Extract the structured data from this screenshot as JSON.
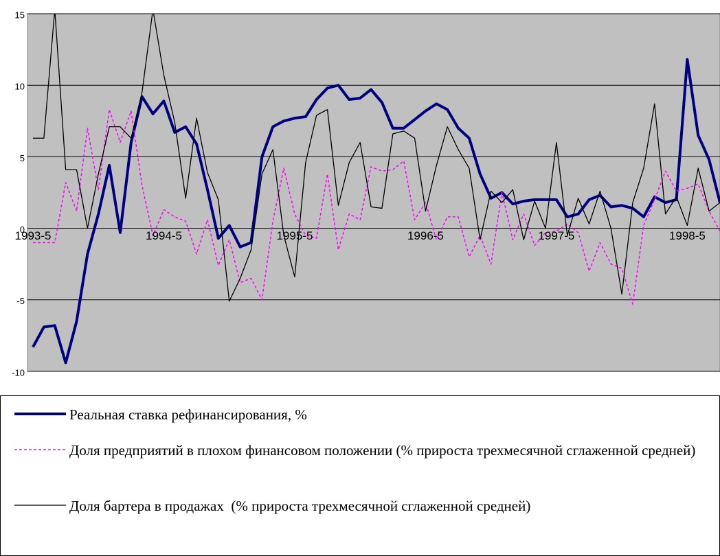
{
  "chart_data": {
    "type": "line",
    "categories": [
      "1993-5",
      null,
      null,
      null,
      null,
      null,
      null,
      null,
      null,
      null,
      null,
      null,
      "1994-5",
      null,
      null,
      null,
      null,
      null,
      null,
      null,
      null,
      null,
      null,
      null,
      "1995-5",
      null,
      null,
      null,
      null,
      null,
      null,
      null,
      null,
      null,
      null,
      null,
      "1996-5",
      null,
      null,
      null,
      null,
      null,
      null,
      null,
      null,
      null,
      null,
      null,
      "1997-5",
      null,
      null,
      null,
      null,
      null,
      null,
      null,
      null,
      null,
      null,
      null,
      "1998-5",
      null,
      null,
      null
    ],
    "ylim": [
      -10,
      15
    ],
    "yticks": [
      -10,
      -5,
      0,
      5,
      10,
      15
    ],
    "grid": true,
    "series": [
      {
        "name": "Реальная ставка рефинансирования, %",
        "color": "#000080",
        "style": "solid",
        "width": 4,
        "values": [
          -8.3,
          -6.9,
          -6.8,
          -9.4,
          -6.5,
          -1.8,
          1.0,
          4.4,
          -0.3,
          6.0,
          9.2,
          8.0,
          8.9,
          6.7,
          7.1,
          5.9,
          2.7,
          -0.7,
          0.2,
          -1.3,
          -1.0,
          5.0,
          7.1,
          7.5,
          7.7,
          7.8,
          9.0,
          9.8,
          10.0,
          9.0,
          9.1,
          9.7,
          8.8,
          7.0,
          7.0,
          7.6,
          8.2,
          8.7,
          8.3,
          7.0,
          6.3,
          3.8,
          2.1,
          2.5,
          1.7,
          1.9,
          2.0,
          2.0,
          2.0,
          0.8,
          1.0,
          2.0,
          2.3,
          1.5,
          1.6,
          1.4,
          0.8,
          2.2,
          1.8,
          2.0,
          11.8,
          6.5,
          4.8,
          1.8
        ]
      },
      {
        "name": "Доля предприятий в плохом финансовом положении (% прироста трехмесячной сглаженной средней)",
        "color": "#ff00ff",
        "style": "dashed",
        "width": 1.5,
        "values": [
          -1.0,
          -1.0,
          -1.0,
          3.2,
          1.2,
          7.0,
          2.7,
          8.3,
          6.0,
          8.2,
          3.0,
          -0.5,
          1.3,
          0.8,
          0.5,
          -1.8,
          0.6,
          -2.6,
          -0.8,
          -3.8,
          -3.5,
          -5.0,
          0.5,
          4.2,
          1.0,
          -0.5,
          -0.7,
          3.8,
          -1.5,
          1.0,
          0.6,
          4.3,
          4.0,
          4.1,
          4.7,
          0.6,
          1.8,
          -0.8,
          0.8,
          0.8,
          -2.0,
          -0.5,
          -2.5,
          2.5,
          -0.8,
          1.0,
          -1.2,
          -0.3,
          -0.2,
          0.3,
          -0.3,
          -3.0,
          -1.0,
          -2.5,
          -2.8,
          -5.3,
          0.2,
          2.0,
          4.0,
          2.6,
          2.8,
          3.1,
          1.2,
          -0.2
        ]
      },
      {
        "name": "Доля бартера в продажах  (% прироста трехмесячной сглаженной средней)",
        "color": "#000000",
        "style": "solid",
        "width": 1.3,
        "values": [
          6.3,
          6.3,
          15.3,
          4.1,
          4.1,
          0.0,
          3.8,
          7.1,
          7.1,
          6.3,
          9.5,
          15.3,
          10.7,
          7.4,
          2.1,
          7.7,
          3.9,
          2.0,
          -5.1,
          -3.5,
          -1.5,
          3.8,
          5.5,
          -0.5,
          -3.4,
          4.6,
          7.9,
          8.3,
          1.6,
          4.6,
          6.0,
          1.5,
          1.4,
          6.6,
          6.8,
          6.3,
          1.2,
          4.4,
          7.1,
          5.5,
          4.2,
          -0.8,
          2.6,
          1.8,
          2.7,
          -0.8,
          1.9,
          0.0,
          6.0,
          -0.5,
          2.1,
          0.3,
          2.6,
          0.0,
          -4.6,
          1.8,
          4.2,
          8.7,
          1.0,
          2.2,
          0.2,
          4.2,
          1.2,
          1.8
        ]
      }
    ]
  }
}
